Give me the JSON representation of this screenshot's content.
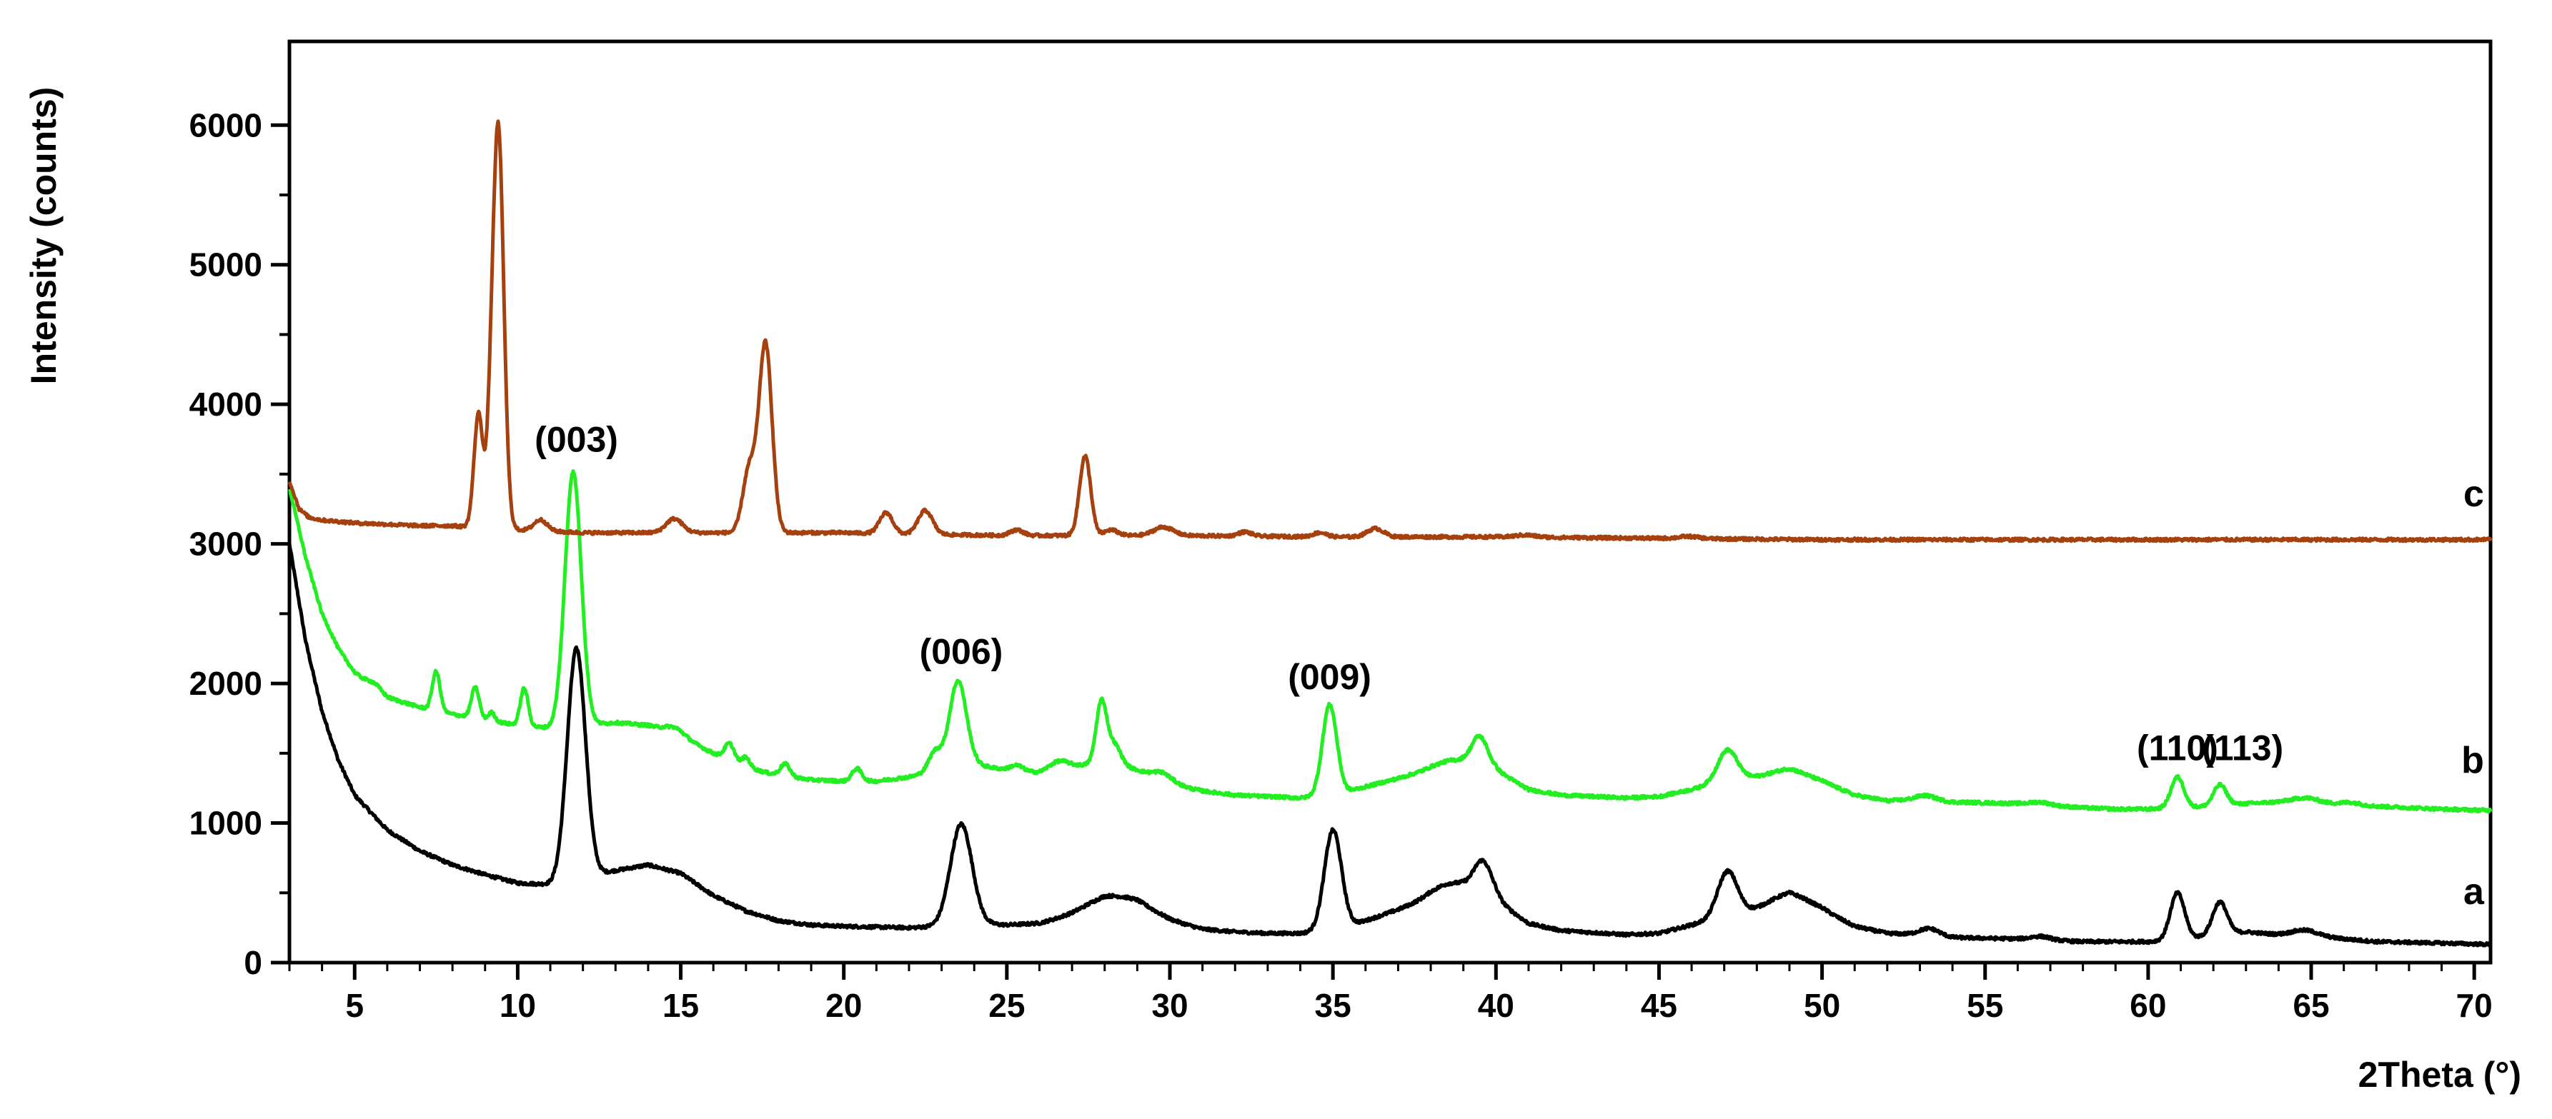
{
  "chart_data": {
    "type": "line",
    "xlabel": "2Theta (°)",
    "ylabel": "Intensity (counts)",
    "xlim": [
      3,
      70.5
    ],
    "ylim": [
      0,
      6600
    ],
    "x_ticks": [
      5,
      10,
      15,
      20,
      25,
      30,
      35,
      40,
      45,
      50,
      55,
      60,
      65,
      70
    ],
    "y_ticks": [
      0,
      1000,
      2000,
      3000,
      4000,
      5000,
      6000
    ],
    "grid": false,
    "legend": "none",
    "series": [
      {
        "name": "a",
        "color": "#000000",
        "baseline": [
          [
            3,
            3000
          ],
          [
            3.5,
            2300
          ],
          [
            4,
            1800
          ],
          [
            4.5,
            1450
          ],
          [
            5,
            1200
          ],
          [
            6,
            950
          ],
          [
            7,
            800
          ],
          [
            8,
            700
          ],
          [
            9,
            630
          ],
          [
            10,
            570
          ],
          [
            11,
            560
          ],
          [
            13,
            660
          ],
          [
            14,
            700
          ],
          [
            15,
            640
          ],
          [
            16,
            480
          ],
          [
            17,
            370
          ],
          [
            18,
            300
          ],
          [
            19,
            270
          ],
          [
            20,
            260
          ],
          [
            22,
            250
          ],
          [
            23,
            260
          ],
          [
            24,
            280
          ],
          [
            25,
            270
          ],
          [
            26,
            280
          ],
          [
            27,
            330
          ],
          [
            28,
            400
          ],
          [
            29,
            390
          ],
          [
            30,
            300
          ],
          [
            31,
            240
          ],
          [
            32,
            220
          ],
          [
            33,
            210
          ],
          [
            34,
            210
          ],
          [
            35,
            230
          ],
          [
            36,
            300
          ],
          [
            37,
            380
          ],
          [
            38,
            470
          ],
          [
            39,
            500
          ],
          [
            40,
            450
          ],
          [
            41,
            280
          ],
          [
            42,
            230
          ],
          [
            44,
            200
          ],
          [
            45,
            210
          ],
          [
            46,
            270
          ],
          [
            47,
            330
          ],
          [
            48,
            380
          ],
          [
            49,
            440
          ],
          [
            50,
            380
          ],
          [
            51,
            260
          ],
          [
            52,
            210
          ],
          [
            53,
            200
          ],
          [
            54,
            180
          ],
          [
            56,
            170
          ],
          [
            57,
            160
          ],
          [
            58,
            150
          ],
          [
            60,
            150
          ],
          [
            61,
            160
          ],
          [
            62,
            200
          ],
          [
            63,
            220
          ],
          [
            64,
            200
          ],
          [
            65,
            190
          ],
          [
            66,
            170
          ],
          [
            67,
            150
          ],
          [
            69,
            140
          ],
          [
            70.5,
            130
          ]
        ],
        "peaks": [
          [
            11.8,
            1650,
            0.28
          ],
          [
            23.6,
            720,
            0.33
          ],
          [
            28.3,
            80,
            0.9
          ],
          [
            35.0,
            720,
            0.26
          ],
          [
            38.6,
            80,
            0.5
          ],
          [
            39.6,
            250,
            0.28
          ],
          [
            47.1,
            320,
            0.3
          ],
          [
            49.0,
            60,
            0.6
          ],
          [
            53.3,
            50,
            0.3
          ],
          [
            56.7,
            25,
            0.3
          ],
          [
            60.9,
            340,
            0.22
          ],
          [
            62.2,
            230,
            0.22
          ],
          [
            64.8,
            40,
            0.4
          ]
        ]
      },
      {
        "name": "b",
        "color": "#22ee22",
        "baseline": [
          [
            3,
            3400
          ],
          [
            3.5,
            2900
          ],
          [
            4,
            2500
          ],
          [
            4.5,
            2250
          ],
          [
            5,
            2080
          ],
          [
            5.5,
            1980
          ],
          [
            6,
            1900
          ],
          [
            7,
            1830
          ],
          [
            8,
            1780
          ],
          [
            9,
            1740
          ],
          [
            10,
            1700
          ],
          [
            11,
            1680
          ],
          [
            12,
            1700
          ],
          [
            13,
            1720
          ],
          [
            14,
            1700
          ],
          [
            15,
            1620
          ],
          [
            16,
            1500
          ],
          [
            17,
            1400
          ],
          [
            18,
            1340
          ],
          [
            19,
            1310
          ],
          [
            20,
            1300
          ],
          [
            21,
            1300
          ],
          [
            22,
            1330
          ],
          [
            23,
            1380
          ],
          [
            24,
            1420
          ],
          [
            25,
            1380
          ],
          [
            26,
            1360
          ],
          [
            27,
            1400
          ],
          [
            28,
            1440
          ],
          [
            29,
            1380
          ],
          [
            30,
            1280
          ],
          [
            31,
            1230
          ],
          [
            32,
            1200
          ],
          [
            33,
            1190
          ],
          [
            34,
            1180
          ],
          [
            35,
            1200
          ],
          [
            36,
            1260
          ],
          [
            37,
            1320
          ],
          [
            38,
            1390
          ],
          [
            39,
            1420
          ],
          [
            40,
            1380
          ],
          [
            41,
            1240
          ],
          [
            42,
            1200
          ],
          [
            44,
            1180
          ],
          [
            45,
            1190
          ],
          [
            46,
            1240
          ],
          [
            47,
            1300
          ],
          [
            48,
            1330
          ],
          [
            49,
            1360
          ],
          [
            50,
            1300
          ],
          [
            51,
            1200
          ],
          [
            52,
            1160
          ],
          [
            53,
            1170
          ],
          [
            54,
            1150
          ],
          [
            56,
            1140
          ],
          [
            58,
            1110
          ],
          [
            59,
            1100
          ],
          [
            60,
            1100
          ],
          [
            62,
            1120
          ],
          [
            63,
            1140
          ],
          [
            64,
            1150
          ],
          [
            65,
            1150
          ],
          [
            66,
            1130
          ],
          [
            67,
            1120
          ],
          [
            69,
            1100
          ],
          [
            70.5,
            1090
          ]
        ],
        "peaks": [
          [
            5.6,
            40,
            0.2
          ],
          [
            7.5,
            280,
            0.12
          ],
          [
            8.7,
            220,
            0.12
          ],
          [
            9.2,
            60,
            0.1
          ],
          [
            10.2,
            270,
            0.12
          ],
          [
            11.7,
            1820,
            0.25
          ],
          [
            14.8,
            50,
            0.3
          ],
          [
            16.5,
            120,
            0.15
          ],
          [
            17.0,
            70,
            0.12
          ],
          [
            18.2,
            90,
            0.15
          ],
          [
            20.4,
            90,
            0.15
          ],
          [
            22.8,
            140,
            0.2
          ],
          [
            23.5,
            620,
            0.26
          ],
          [
            25.3,
            40,
            0.2
          ],
          [
            26.6,
            60,
            0.3
          ],
          [
            27.9,
            430,
            0.16
          ],
          [
            28.3,
            140,
            0.2
          ],
          [
            29.8,
            60,
            0.3
          ],
          [
            34.9,
            650,
            0.22
          ],
          [
            38.6,
            40,
            0.4
          ],
          [
            39.5,
            220,
            0.25
          ],
          [
            47.1,
            220,
            0.3
          ],
          [
            49.0,
            30,
            0.5
          ],
          [
            53.2,
            30,
            0.3
          ],
          [
            56.7,
            20,
            0.3
          ],
          [
            60.9,
            220,
            0.2
          ],
          [
            62.2,
            150,
            0.2
          ],
          [
            64.8,
            30,
            0.4
          ],
          [
            66.2,
            20,
            0.3
          ]
        ]
      },
      {
        "name": "c",
        "color": "#a5400f",
        "baseline": [
          [
            3,
            3450
          ],
          [
            3.3,
            3250
          ],
          [
            3.6,
            3190
          ],
          [
            4,
            3170
          ],
          [
            5,
            3150
          ],
          [
            6,
            3140
          ],
          [
            7,
            3130
          ],
          [
            8,
            3130
          ],
          [
            9,
            3110
          ],
          [
            10,
            3100
          ],
          [
            11,
            3090
          ],
          [
            12,
            3080
          ],
          [
            15,
            3080
          ],
          [
            18,
            3080
          ],
          [
            20,
            3080
          ],
          [
            22,
            3070
          ],
          [
            25,
            3060
          ],
          [
            30,
            3060
          ],
          [
            35,
            3050
          ],
          [
            40,
            3050
          ],
          [
            45,
            3040
          ],
          [
            50,
            3030
          ],
          [
            55,
            3030
          ],
          [
            60,
            3030
          ],
          [
            65,
            3030
          ],
          [
            70.5,
            3030
          ]
        ],
        "peaks": [
          [
            8.8,
            820,
            0.14
          ],
          [
            9.15,
            300,
            0.1
          ],
          [
            9.4,
            2900,
            0.17
          ],
          [
            10.7,
            80,
            0.2
          ],
          [
            14.8,
            100,
            0.25
          ],
          [
            17.1,
            450,
            0.2
          ],
          [
            17.6,
            1350,
            0.2
          ],
          [
            21.3,
            150,
            0.2
          ],
          [
            22.5,
            170,
            0.22
          ],
          [
            25.3,
            40,
            0.2
          ],
          [
            27.4,
            570,
            0.17
          ],
          [
            28.2,
            40,
            0.2
          ],
          [
            29.8,
            60,
            0.3
          ],
          [
            32.3,
            30,
            0.2
          ],
          [
            34.6,
            30,
            0.2
          ],
          [
            36.3,
            60,
            0.25
          ],
          [
            40.9,
            15,
            0.3
          ],
          [
            45.9,
            15,
            0.3
          ]
        ]
      }
    ],
    "series_labels": [
      {
        "text": "a",
        "x": 70.3,
        "y": 420
      },
      {
        "text": "b",
        "x": 70.3,
        "y": 1360
      },
      {
        "text": "c",
        "x": 70.3,
        "y": 3270
      }
    ],
    "annotations": [
      {
        "text": "(003)",
        "x": 11.8,
        "y": 3660
      },
      {
        "text": "(006)",
        "x": 23.6,
        "y": 2140
      },
      {
        "text": "(009)",
        "x": 34.9,
        "y": 1960
      },
      {
        "text": "(110)",
        "x": 60.9,
        "y": 1450
      },
      {
        "text": "(113)",
        "x": 62.9,
        "y": 1450
      }
    ]
  }
}
